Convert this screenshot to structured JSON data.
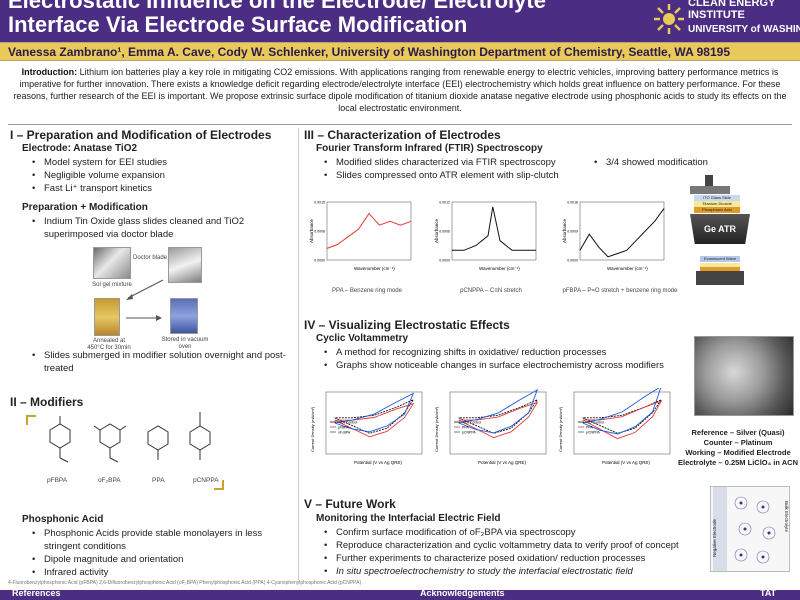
{
  "header": {
    "title_line1": "Electrostatic Influence on the Electrode/ Electrolyte",
    "title_line2": "Interface Via Electrode Surface Modification",
    "logo_line1": "CLEAN ENERGY",
    "logo_line2": "INSTITUTE",
    "logo_line3": "UNIVERSITY of WASHINGTON",
    "colors": {
      "purple": "#4b2e83",
      "gold": "#e8c95a"
    }
  },
  "authors": "Vanessa Zambrano¹, Emma A. Cave, Cody W. Schlenker, University of Washington Department of Chemistry, Seattle, WA 98195",
  "intro": {
    "label": "Introduction:",
    "text": " Lithium ion batteries play a key role in mitigating CO2 emissions. With applications ranging from renewable energy to electric vehicles, improving battery performance metrics is imperative for further innovation. There exists a knowledge deficit regarding electrode/electrolyte interface (EEI) electrochemistry which holds great influence on battery performance. For these reasons, further research of the EEI is important. We propose extrinsic surface dipole modification of titanium dioxide anatase negative electrode using phosphonic acids to study its effects on the local electrostatic environment."
  },
  "section1": {
    "title": "I – Preparation and Modification of Electrodes",
    "sub1": "Electrode: Anatase TiO2",
    "bullets1": [
      "Model system for EEI studies",
      "Negligible volume expansion",
      "Fast Li⁺ transport kinetics"
    ],
    "sub2": "Preparation + Modification",
    "bullets2": [
      "Indium Tin Oxide glass slides cleaned and TiO2 superimposed via doctor blade"
    ],
    "captions": {
      "solgel": "Sol gel mixture",
      "doctor": "Doctor blade",
      "annealed": "Annealed at 450°C for 30min",
      "stored": "Stored in vacuum oven"
    },
    "bullets3": [
      "Slides submerged in modifier solution overnight and post-treated"
    ]
  },
  "section2": {
    "title": "II – Modifiers",
    "molecules": [
      "pFBPA",
      "oF₂BPA",
      "PPA",
      "pCNPPA"
    ],
    "sub": "Phosphonic Acid",
    "bullets": [
      "Phosphonic Acids provide stable monolayers in less stringent conditions",
      "Dipole magnitude and orientation",
      "Infrared activity"
    ]
  },
  "section3": {
    "title": "III – Characterization of Electrodes",
    "sub": "Fourier Transform Infrared (FTIR) Spectroscopy",
    "bullets": [
      "Modified slides characterized via FTIR spectroscopy",
      "Slides compressed onto ATR element with slip-clutch"
    ],
    "side_bullet": "3/4 showed modification",
    "spectra_captions": [
      "PPA – Benzene ring mode",
      "pCNPPA – C≡N stretch",
      "pFBPA – P=O stretch + benzene ring mode"
    ],
    "axis_y": "Absorbance",
    "axis_x": "Wavenumber (cm⁻¹)",
    "atr_layers": [
      "ITO Glass Slide",
      "Titanium Dioxide",
      "Phosphonic Acid"
    ],
    "atr_element": "Ge ATR Element",
    "evanescent": "Evanescent Wave"
  },
  "section4": {
    "title": "IV – Visualizing Electrostatic Effects",
    "sub": "Cyclic Voltammetry",
    "bullets": [
      "A method for recognizing shifts in oxidative/ reduction processes",
      "Graphs show noticeable changes in surface electrochemistry across modifiers"
    ],
    "cv_ylabel": "Current Density (mA/cm²)",
    "cv_xlabel": "Potential (V vs Ag QRE)",
    "cv_legends": [
      [
        "TiO₂ Control",
        "pFBPA",
        "oF₂BPA"
      ],
      [
        "TiO₂ Control",
        "PPA",
        "pCNPPA"
      ],
      [
        "ITO Control",
        "PPA",
        "pCNPPA"
      ]
    ],
    "electrodes": [
      "Reference – Silver (Quasi)",
      "Counter – Platinum",
      "Working – Modified Electrode",
      "Electrolyte – 0.25M LiClO₄ in ACN"
    ]
  },
  "section5": {
    "title": "V – Future Work",
    "sub": "Monitoring the Interfacial Electric Field",
    "bullets": [
      "Confirm surface modification of oF₂BPA via spectroscopy",
      "Reproduce characterization and cyclic voltammetry data to verify proof of concept",
      "Further experiments to characterize posed oxidation/ reduction processes",
      "In situ spectroelectrochemistry to study the interfacial electrostatic field"
    ],
    "diagram_left": "Negative Electrode",
    "diagram_right": "Bulk Electrolyte"
  },
  "footnote": "4-Fluorobenzylphosphonic Acid (pFBPA)   2,6-Difluorobenzylphosphonic Acid (oF₂BPA)   Phenylphosphonic Acid (PPA)   4-Cyanophenylphosphonic Acid (pCNPPA)",
  "footer": {
    "references": "References",
    "acknowledgements": "Acknowledgements",
    "logo": "TAT"
  },
  "chart_data": [
    {
      "type": "line",
      "title": "PPA – Benzene ring mode",
      "xlabel": "Wavenumber (cm⁻¹)",
      "ylabel": "Absorbance",
      "x": [
        1800,
        1750,
        1700,
        1650,
        1600,
        1550,
        1500,
        1450,
        1400
      ],
      "values": [
        0.0003,
        0.0004,
        0.0006,
        0.0008,
        0.0012,
        0.0009,
        0.001,
        0.0009,
        0.001
      ],
      "ylim": [
        0,
        0.0015
      ]
    },
    {
      "type": "line",
      "title": "pCNPPA – C≡N stretch",
      "xlabel": "Wavenumber (cm⁻¹)",
      "ylabel": "Absorbance",
      "x": [
        2400,
        2350,
        2300,
        2250,
        2230,
        2200,
        2150,
        2100,
        2050
      ],
      "values": [
        0.0002,
        0.0002,
        0.0003,
        0.0005,
        0.0011,
        0.0004,
        0.0002,
        0.0002,
        0.0002
      ],
      "ylim": [
        0,
        0.0012
      ]
    },
    {
      "type": "line",
      "title": "pFBPA – P=O stretch + benzene ring mode",
      "xlabel": "Wavenumber (cm⁻¹)",
      "ylabel": "Absorbance",
      "x": [
        1600,
        1550,
        1500,
        1450,
        1400,
        1350,
        1300,
        1250,
        1200,
        1150
      ],
      "values": [
        0.0003,
        0.0008,
        0.0004,
        0.0001,
        0.0002,
        0.0003,
        0.0006,
        0.0009,
        0.0012,
        0.0016
      ],
      "ylim": [
        0,
        0.0018
      ]
    }
  ]
}
